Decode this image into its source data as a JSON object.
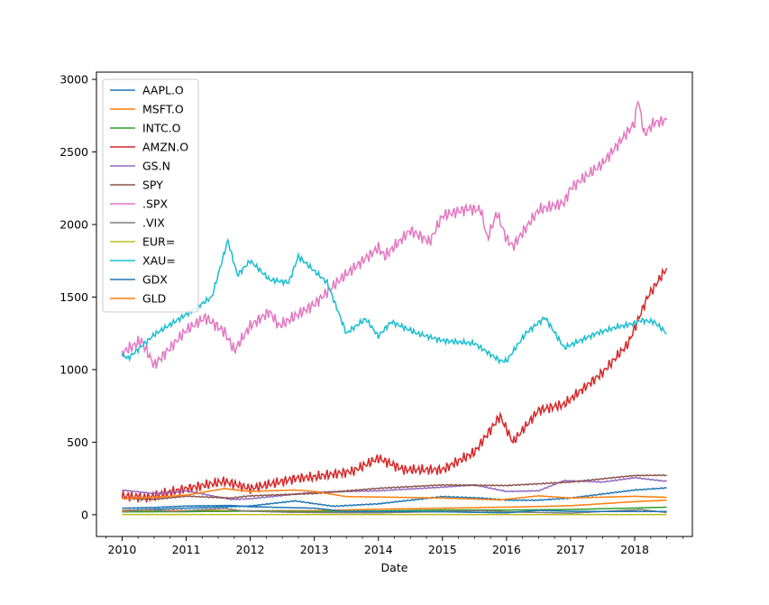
{
  "chart_data": {
    "type": "line",
    "title": "",
    "xlabel": "Date",
    "ylabel": "",
    "xlim": [
      2009.6,
      2018.9
    ],
    "ylim": [
      -150,
      3050
    ],
    "x_ticks": [
      "2010",
      "2011",
      "2012",
      "2013",
      "2014",
      "2015",
      "2016",
      "2017",
      "2018"
    ],
    "y_ticks": [
      "0",
      "500",
      "1000",
      "1500",
      "2000",
      "2500",
      "3000"
    ],
    "legend_position": "upper-left",
    "grid": false,
    "series": [
      {
        "name": "AAPL.O",
        "color": "#1f77b4",
        "x": [
          2010.0,
          2011.0,
          2012.0,
          2012.7,
          2013.3,
          2014.0,
          2015.0,
          2015.6,
          2016.0,
          2016.5,
          2017.0,
          2018.0,
          2018.5
        ],
        "y": [
          30,
          45,
          60,
          95,
          58,
          75,
          125,
          115,
          100,
          100,
          115,
          170,
          185
        ]
      },
      {
        "name": "MSFT.O",
        "color": "#ff7f0e",
        "x": [
          2010.0,
          2011.0,
          2012.0,
          2013.0,
          2014.0,
          2015.0,
          2016.0,
          2017.0,
          2018.0,
          2018.5
        ],
        "y": [
          30,
          28,
          27,
          28,
          38,
          45,
          52,
          62,
          90,
          100
        ]
      },
      {
        "name": "INTC.O",
        "color": "#2ca02c",
        "x": [
          2010.0,
          2011.0,
          2012.0,
          2013.0,
          2014.0,
          2015.0,
          2016.0,
          2017.0,
          2018.0,
          2018.5
        ],
        "y": [
          20,
          21,
          25,
          22,
          26,
          33,
          32,
          36,
          46,
          52
        ]
      },
      {
        "name": "AMZN.O",
        "color": "#d62728",
        "x": [
          2010.0,
          2010.4,
          2011.0,
          2011.6,
          2012.0,
          2012.7,
          2013.0,
          2013.6,
          2014.0,
          2014.4,
          2015.0,
          2015.5,
          2015.9,
          2016.1,
          2016.5,
          2016.9,
          2017.5,
          2017.9,
          2018.2,
          2018.5
        ],
        "y": [
          130,
          120,
          180,
          230,
          180,
          250,
          260,
          300,
          390,
          310,
          310,
          430,
          680,
          500,
          720,
          760,
          980,
          1180,
          1500,
          1700
        ]
      },
      {
        "name": "GS.N",
        "color": "#9467bd",
        "x": [
          2010.0,
          2010.5,
          2011.0,
          2011.7,
          2012.0,
          2013.0,
          2014.0,
          2015.0,
          2015.5,
          2016.0,
          2016.5,
          2016.9,
          2017.5,
          2018.0,
          2018.5
        ],
        "y": [
          170,
          145,
          165,
          105,
          110,
          155,
          165,
          190,
          205,
          160,
          165,
          235,
          225,
          255,
          230
        ]
      },
      {
        "name": "SPY",
        "color": "#8c564b",
        "x": [
          2010.0,
          2010.5,
          2011.0,
          2011.7,
          2012.0,
          2013.0,
          2014.0,
          2015.0,
          2016.0,
          2017.0,
          2018.0,
          2018.5
        ],
        "y": [
          112,
          105,
          128,
          115,
          130,
          146,
          182,
          205,
          201,
          225,
          270,
          272
        ]
      },
      {
        "name": ".SPX",
        "color": "#e377c2",
        "x": [
          2010.0,
          2010.3,
          2010.5,
          2011.0,
          2011.3,
          2011.6,
          2011.75,
          2012.0,
          2012.3,
          2012.45,
          2013.0,
          2013.4,
          2014.0,
          2014.1,
          2014.5,
          2014.8,
          2015.0,
          2015.4,
          2015.6,
          2015.7,
          2015.85,
          2016.0,
          2016.1,
          2016.5,
          2016.9,
          2017.0,
          2017.5,
          2018.0,
          2018.05,
          2018.15,
          2018.3,
          2018.5
        ],
        "y": [
          1115,
          1200,
          1030,
          1270,
          1360,
          1260,
          1130,
          1300,
          1400,
          1300,
          1450,
          1620,
          1840,
          1780,
          1960,
          1880,
          2060,
          2110,
          2100,
          1900,
          2080,
          1900,
          1850,
          2100,
          2150,
          2250,
          2420,
          2700,
          2870,
          2620,
          2700,
          2720
        ]
      },
      {
        "name": ".VIX",
        "color": "#7f7f7f",
        "x": [
          2010.0,
          2010.4,
          2010.8,
          2011.6,
          2011.9,
          2012.5,
          2013.0,
          2014.0,
          2015.6,
          2016.0,
          2017.0,
          2018.1,
          2018.5
        ],
        "y": [
          20,
          35,
          22,
          43,
          25,
          18,
          15,
          13,
          28,
          20,
          11,
          35,
          15
        ]
      },
      {
        "name": "EUR=",
        "color": "#bcbd22",
        "x": [
          2010.0,
          2018.5
        ],
        "y": [
          1.4,
          1.2
        ]
      },
      {
        "name": "XAU=",
        "color": "#17becf",
        "x": [
          2010.0,
          2010.1,
          2010.5,
          2011.0,
          2011.4,
          2011.65,
          2011.8,
          2012.0,
          2012.3,
          2012.6,
          2012.75,
          2013.0,
          2013.2,
          2013.5,
          2013.8,
          2014.0,
          2014.2,
          2014.6,
          2015.0,
          2015.5,
          2015.9,
          2016.0,
          2016.3,
          2016.6,
          2016.9,
          2017.0,
          2017.4,
          2017.7,
          2018.0,
          2018.1,
          2018.3,
          2018.5
        ],
        "y": [
          1100,
          1080,
          1240,
          1380,
          1500,
          1890,
          1650,
          1750,
          1620,
          1600,
          1780,
          1680,
          1600,
          1250,
          1350,
          1230,
          1330,
          1250,
          1200,
          1180,
          1060,
          1060,
          1250,
          1360,
          1150,
          1170,
          1250,
          1290,
          1320,
          1340,
          1330,
          1250
        ]
      },
      {
        "name": "GDX",
        "color": "#1f77b4",
        "x": [
          2010.0,
          2010.5,
          2011.0,
          2011.7,
          2012.0,
          2013.0,
          2013.5,
          2014.0,
          2015.0,
          2016.0,
          2016.5,
          2017.0,
          2018.0,
          2018.5
        ],
        "y": [
          45,
          50,
          60,
          64,
          55,
          45,
          22,
          23,
          20,
          13,
          30,
          23,
          22,
          22
        ]
      },
      {
        "name": "GLD",
        "color": "#ff7f0e",
        "x": [
          2010.0,
          2010.5,
          2011.0,
          2011.6,
          2012.0,
          2012.7,
          2013.0,
          2013.5,
          2014.0,
          2015.0,
          2015.9,
          2016.5,
          2017.0,
          2018.0,
          2018.5
        ],
        "y": [
          110,
          120,
          135,
          180,
          160,
          170,
          160,
          125,
          122,
          115,
          102,
          130,
          115,
          127,
          120
        ]
      }
    ]
  }
}
